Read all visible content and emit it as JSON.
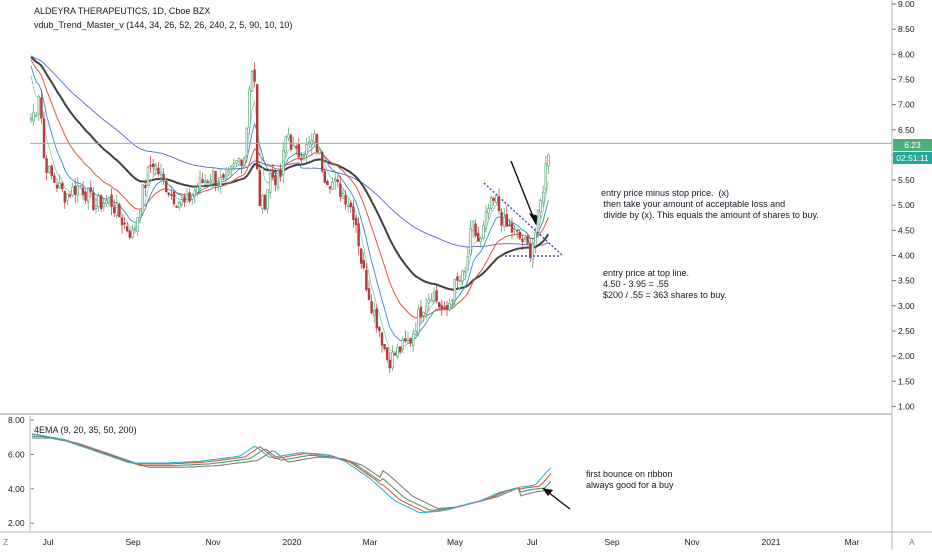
{
  "header": {
    "symbol_line": "ALDEYRA THERAPEUTICS, 1D, Cboe BZX",
    "indicator_line": "vdub_Trend_Master_v (144, 34, 26, 52, 26, 240, 2, 5, 90, 10, 10)",
    "lower_indicator_line": "4EMA (9, 20, 35, 50, 200)"
  },
  "price_axis": {
    "ticks": [
      "9.00",
      "8.50",
      "8.00",
      "7.50",
      "7.00",
      "6.50",
      "6.00",
      "5.50",
      "5.00",
      "4.50",
      "4.00",
      "3.50",
      "3.00",
      "2.50",
      "2.00",
      "1.50",
      "1.00"
    ],
    "last_price": "6.23",
    "countdown": "02:51:11",
    "colors": {
      "last_price_bg": "#4caf7d",
      "countdown_bg": "#26a69a"
    }
  },
  "lower_axis": {
    "ticks": [
      "8.00",
      "6.00",
      "4.00",
      "2.00"
    ]
  },
  "time_axis": {
    "labels": [
      "Jul",
      "Sep",
      "Nov",
      "2020",
      "Mar",
      "May",
      "Jul",
      "Sep",
      "Nov",
      "2021",
      "Mar"
    ],
    "corner_left": "Z",
    "corner_right": "A"
  },
  "annotations": {
    "note_main": "entry price minus stop price.  (x)\n then take your amount of acceptable loss and\n divide by (x). This equals the amount of shares to buy.",
    "note_calc": "entry price at top line.\n4.50 - 3.95 = .55\n$200 / .55 = 363 shares to buy.",
    "note_ribbon": "first bounce on ribbon\nalways good for a buy"
  },
  "chart_data": {
    "type": "candlestick",
    "title": "ALDEYRA THERAPEUTICS, 1D, Cboe BZX",
    "x_labels": [
      "Jul",
      "Sep",
      "Nov",
      "2020",
      "Mar",
      "May",
      "Jul"
    ],
    "ylim": [
      1.0,
      9.0
    ],
    "close_series": [
      {
        "date": "2019-06",
        "close": 6.7
      },
      {
        "date": "2019-07",
        "close": 5.4
      },
      {
        "date": "2019-08",
        "close": 5.0
      },
      {
        "date": "2019-09",
        "close": 4.5
      },
      {
        "date": "2019-10",
        "close": 5.3
      },
      {
        "date": "2019-11",
        "close": 5.5
      },
      {
        "date": "2019-11-20",
        "close": 7.8
      },
      {
        "date": "2019-12",
        "close": 5.2
      },
      {
        "date": "2020-01",
        "close": 6.2
      },
      {
        "date": "2020-02",
        "close": 5.5
      },
      {
        "date": "2020-03",
        "close": 1.9
      },
      {
        "date": "2020-04",
        "close": 2.6
      },
      {
        "date": "2020-05",
        "close": 4.2
      },
      {
        "date": "2020-06",
        "close": 4.7
      },
      {
        "date": "2020-07",
        "close": 6.23
      }
    ],
    "horizontal_line": 6.23,
    "lower_pane": {
      "type": "line",
      "name": "4EMA",
      "ylim": [
        1.5,
        8.5
      ]
    }
  }
}
